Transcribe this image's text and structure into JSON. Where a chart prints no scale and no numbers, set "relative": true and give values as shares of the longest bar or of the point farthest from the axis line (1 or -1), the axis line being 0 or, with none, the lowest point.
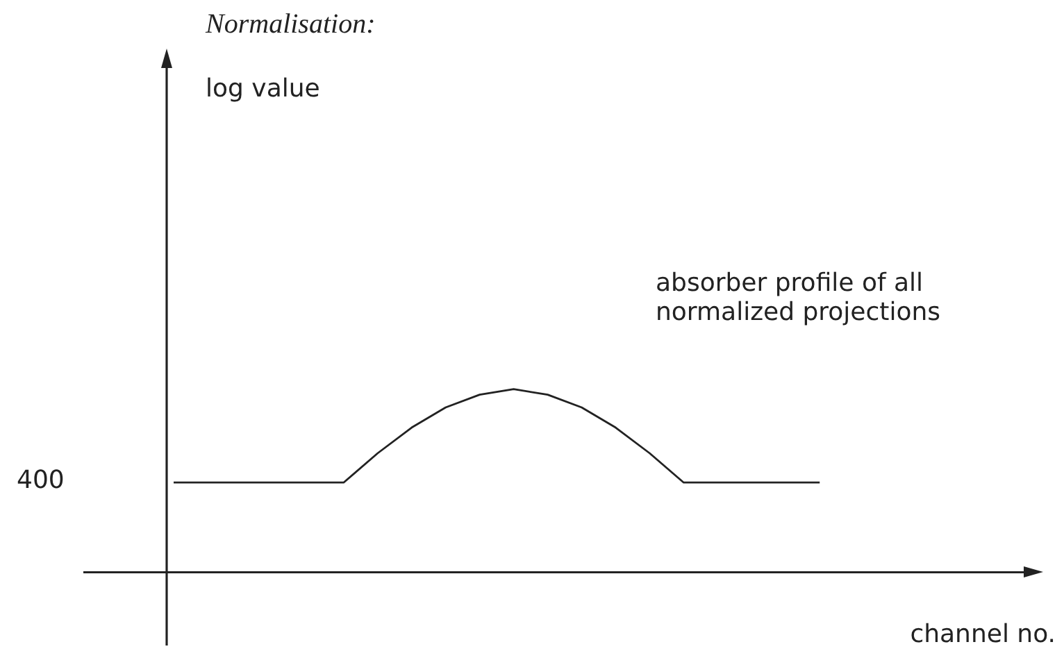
{
  "chart_data": {
    "type": "line",
    "title": "Normalisation:",
    "xlabel": "channel no.",
    "relative": true,
    "categories": [
      null,
      null,
      null,
      null,
      null,
      null,
      null,
      null,
      null,
      null,
      null,
      null,
      null,
      null,
      null,
      null,
      null,
      null,
      null,
      null,
      null,
      null,
      null,
      null,
      null,
      null
    ],
    "series": [
      {
        "color": "#222222",
        "values": [
          0.49,
          0.49,
          0.49,
          0.49,
          0.49,
          0.49,
          0.65,
          0.79,
          0.9,
          0.97,
          1,
          0.97,
          0.9,
          0.79,
          0.65,
          0.49,
          0.49,
          0.49,
          0.49,
          0.49,
          null,
          null,
          null,
          null,
          null,
          null
        ]
      }
    ],
    "annotations": [
      "log value",
      "400",
      "absorber profile of all normalized projections"
    ],
    "marker": "none",
    "line_style": "solid",
    "grid": false,
    "legend": false
  }
}
